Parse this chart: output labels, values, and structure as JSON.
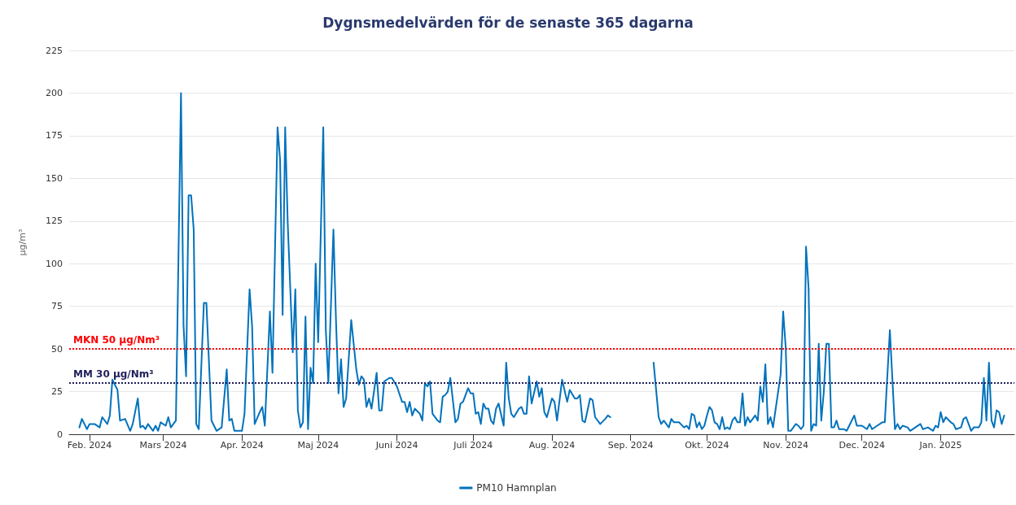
{
  "chart_data": {
    "type": "line",
    "title": "Dygnsmedelvärden för de senaste 365 dagarna",
    "ylabel": "µg/m³",
    "xlim": [
      "2024-01-24",
      "2025-01-30"
    ],
    "xticks": [
      {
        "value": "2024-02-01",
        "label": "Feb. 2024"
      },
      {
        "value": "2024-03-01",
        "label": "Mars 2024"
      },
      {
        "value": "2024-04-01",
        "label": "Apr. 2024"
      },
      {
        "value": "2024-05-01",
        "label": "Maj 2024"
      },
      {
        "value": "2024-06-01",
        "label": "Juni 2024"
      },
      {
        "value": "2024-07-01",
        "label": "Juli 2024"
      },
      {
        "value": "2024-08-01",
        "label": "Aug. 2024"
      },
      {
        "value": "2024-09-01",
        "label": "Sep. 2024"
      },
      {
        "value": "2024-10-01",
        "label": "Okt. 2024"
      },
      {
        "value": "2024-11-01",
        "label": "Nov. 2024"
      },
      {
        "value": "2024-12-01",
        "label": "Dec. 2024"
      },
      {
        "value": "2025-01-01",
        "label": "Jan. 2025"
      }
    ],
    "ylim": [
      0,
      225
    ],
    "yticks": [
      0,
      25,
      50,
      75,
      100,
      125,
      150,
      175,
      200,
      225
    ],
    "grid": "y",
    "legend": "bottom",
    "marker": "none",
    "line_style": "solid",
    "ref_lines": [
      {
        "axis": "y",
        "value": 50,
        "label": "MKN 50 µg/Nm³",
        "color": "#ff0000",
        "line_style": "dotted"
      },
      {
        "axis": "y",
        "value": 30,
        "label": "MM 30 µg/Nm³",
        "color": "#1f1f5c",
        "line_style": "dotted"
      }
    ],
    "series": [
      {
        "name": "PM10 Hamnplan",
        "color": "#0072bc",
        "x": [
          "2024-01-28",
          "2024-01-29",
          "2024-01-31",
          "2024-02-01",
          "2024-02-03",
          "2024-02-05",
          "2024-02-06",
          "2024-02-08",
          "2024-02-09",
          "2024-02-10",
          "2024-02-12",
          "2024-02-13",
          "2024-02-15",
          "2024-02-17",
          "2024-02-18",
          "2024-02-20",
          "2024-02-21",
          "2024-02-22",
          "2024-02-23",
          "2024-02-24",
          "2024-02-26",
          "2024-02-27",
          "2024-02-28",
          "2024-02-29",
          "2024-03-02",
          "2024-03-03",
          "2024-03-04",
          "2024-03-06",
          "2024-03-08",
          "2024-03-09",
          "2024-03-10",
          "2024-03-11",
          "2024-03-12",
          "2024-03-13",
          "2024-03-14",
          "2024-03-15",
          "2024-03-17",
          "2024-03-18",
          "2024-03-20",
          "2024-03-22",
          "2024-03-24",
          "2024-03-26",
          "2024-03-27",
          "2024-03-28",
          "2024-03-29",
          "2024-04-01",
          "2024-04-02",
          "2024-04-04",
          "2024-04-05",
          "2024-04-06",
          "2024-04-08",
          "2024-04-09",
          "2024-04-10",
          "2024-04-12",
          "2024-04-13",
          "2024-04-15",
          "2024-04-16",
          "2024-04-17",
          "2024-04-18",
          "2024-04-19",
          "2024-04-21",
          "2024-04-22",
          "2024-04-23",
          "2024-04-24",
          "2024-04-25",
          "2024-04-26",
          "2024-04-27",
          "2024-04-28",
          "2024-04-29",
          "2024-04-30",
          "2024-05-01",
          "2024-05-03",
          "2024-05-04",
          "2024-05-05",
          "2024-05-07",
          "2024-05-08",
          "2024-05-09",
          "2024-05-10",
          "2024-05-11",
          "2024-05-12",
          "2024-05-14",
          "2024-05-16",
          "2024-05-17",
          "2024-05-18",
          "2024-05-19",
          "2024-05-20",
          "2024-05-21",
          "2024-05-22",
          "2024-05-24",
          "2024-05-25",
          "2024-05-26",
          "2024-05-27",
          "2024-05-29",
          "2024-05-30",
          "2024-06-01",
          "2024-06-03",
          "2024-06-04",
          "2024-06-05",
          "2024-06-06",
          "2024-06-07",
          "2024-06-08",
          "2024-06-10",
          "2024-06-11",
          "2024-06-12",
          "2024-06-13",
          "2024-06-14",
          "2024-06-15",
          "2024-06-17",
          "2024-06-18",
          "2024-06-19",
          "2024-06-20",
          "2024-06-21",
          "2024-06-22",
          "2024-06-24",
          "2024-06-25",
          "2024-06-26",
          "2024-06-27",
          "2024-06-29",
          "2024-06-30",
          "2024-07-01",
          "2024-07-02",
          "2024-07-03",
          "2024-07-04",
          "2024-07-05",
          "2024-07-06",
          "2024-07-07",
          "2024-07-08",
          "2024-07-09",
          "2024-07-10",
          "2024-07-11",
          "2024-07-13",
          "2024-07-14",
          "2024-07-15",
          "2024-07-16",
          "2024-07-17",
          "2024-07-19",
          "2024-07-20",
          "2024-07-21",
          "2024-07-22",
          "2024-07-23",
          "2024-07-24",
          "2024-07-26",
          "2024-07-27",
          "2024-07-28",
          "2024-07-29",
          "2024-07-30",
          "2024-08-01",
          "2024-08-02",
          "2024-08-03",
          "2024-08-05",
          "2024-08-07",
          "2024-08-08",
          "2024-08-10",
          "2024-08-11",
          "2024-08-12",
          "2024-08-13",
          "2024-08-14",
          "2024-08-16",
          "2024-08-17",
          "2024-08-18",
          "2024-08-20",
          "2024-08-22",
          "2024-08-23",
          "2024-08-24",
          "2024-08-25",
          "2024-09-10",
          "2024-09-12",
          "2024-09-13",
          "2024-09-14",
          "2024-09-16",
          "2024-09-17",
          "2024-09-18",
          "2024-09-19",
          "2024-09-20",
          "2024-09-22",
          "2024-09-23",
          "2024-09-24",
          "2024-09-25",
          "2024-09-26",
          "2024-09-27",
          "2024-09-28",
          "2024-09-29",
          "2024-09-30",
          "2024-10-01",
          "2024-10-02",
          "2024-10-03",
          "2024-10-04",
          "2024-10-05",
          "2024-10-06",
          "2024-10-07",
          "2024-10-08",
          "2024-10-09",
          "2024-10-10",
          "2024-10-11",
          "2024-10-12",
          "2024-10-13",
          "2024-10-14",
          "2024-10-15",
          "2024-10-16",
          "2024-10-17",
          "2024-10-18",
          "2024-10-19",
          "2024-10-20",
          "2024-10-21",
          "2024-10-22",
          "2024-10-23",
          "2024-10-24",
          "2024-10-25",
          "2024-10-26",
          "2024-10-27",
          "2024-10-30",
          "2024-10-31",
          "2024-11-01",
          "2024-11-02",
          "2024-11-03",
          "2024-11-05",
          "2024-11-06",
          "2024-11-07",
          "2024-11-08",
          "2024-11-09",
          "2024-11-10",
          "2024-11-11",
          "2024-11-12",
          "2024-11-13",
          "2024-11-14",
          "2024-11-15",
          "2024-11-16",
          "2024-11-17",
          "2024-11-18",
          "2024-11-19",
          "2024-11-20",
          "2024-11-21",
          "2024-11-22",
          "2024-11-24",
          "2024-11-25",
          "2024-11-26",
          "2024-11-28",
          "2024-11-29",
          "2024-12-01",
          "2024-12-03",
          "2024-12-04",
          "2024-12-05",
          "2024-12-07",
          "2024-12-09",
          "2024-12-10",
          "2024-12-12",
          "2024-12-13",
          "2024-12-14",
          "2024-12-15",
          "2024-12-16",
          "2024-12-17",
          "2024-12-19",
          "2024-12-20",
          "2024-12-22",
          "2024-12-24",
          "2024-12-25",
          "2024-12-27",
          "2024-12-29",
          "2024-12-30",
          "2024-12-31",
          "2025-01-01",
          "2025-01-02",
          "2025-01-03",
          "2025-01-05",
          "2025-01-06",
          "2025-01-07",
          "2025-01-09",
          "2025-01-10",
          "2025-01-11",
          "2025-01-12",
          "2025-01-13",
          "2025-01-14",
          "2025-01-16",
          "2025-01-17",
          "2025-01-18",
          "2025-01-19",
          "2025-01-20",
          "2025-01-21",
          "2025-01-22",
          "2025-01-23",
          "2025-01-24",
          "2025-01-25",
          "2025-01-26"
        ],
        "values": [
          4,
          9,
          3,
          6,
          6,
          4,
          10,
          6,
          11,
          32,
          26,
          8,
          9,
          2,
          6,
          21,
          4,
          5,
          3,
          6,
          2,
          5,
          2,
          7,
          5,
          10,
          4,
          8,
          200,
          64,
          34,
          140,
          140,
          120,
          6,
          3,
          77,
          77,
          8,
          2,
          4,
          38,
          8,
          9,
          2,
          2,
          12,
          85,
          63,
          6,
          13,
          16,
          5,
          72,
          36,
          180,
          161,
          70,
          180,
          124,
          48,
          85,
          14,
          4,
          7,
          69,
          3,
          39,
          30,
          100,
          54,
          180,
          61,
          30,
          120,
          67,
          24,
          44,
          16,
          21,
          67,
          38,
          29,
          34,
          32,
          16,
          21,
          15,
          36,
          14,
          14,
          31,
          33,
          33,
          28,
          19,
          19,
          13,
          19,
          11,
          15,
          12,
          8,
          30,
          28,
          31,
          12,
          8,
          7,
          22,
          23,
          25,
          33,
          7,
          9,
          18,
          19,
          27,
          24,
          24,
          12,
          13,
          6,
          18,
          15,
          15,
          8,
          6,
          15,
          18,
          5,
          42,
          21,
          12,
          10,
          15,
          16,
          12,
          12,
          34,
          18,
          31,
          22,
          27,
          13,
          10,
          21,
          19,
          8,
          32,
          19,
          26,
          21,
          21,
          23,
          8,
          7,
          21,
          20,
          10,
          6,
          9,
          11,
          10,
          null,
          42,
          10,
          6,
          8,
          4,
          9,
          7,
          7,
          7,
          4,
          5,
          3,
          12,
          11,
          4,
          7,
          3,
          5,
          11,
          16,
          14,
          7,
          6,
          3,
          10,
          3,
          4,
          3,
          8,
          10,
          7,
          7,
          24,
          5,
          10,
          7,
          9,
          11,
          8,
          28,
          19,
          41,
          6,
          10,
          4,
          35,
          72,
          51,
          2,
          2,
          6,
          5,
          3,
          5,
          110,
          86,
          2,
          6,
          5,
          53,
          8,
          25,
          53,
          53,
          4,
          4,
          8,
          3,
          3,
          2,
          5,
          11,
          5,
          5,
          3,
          6,
          3,
          5,
          7,
          7,
          61,
          32,
          3,
          6,
          3,
          5,
          4,
          2,
          4,
          6,
          3,
          4,
          2,
          5,
          4,
          13,
          7,
          10,
          7,
          6,
          3,
          4,
          9,
          10,
          6,
          2,
          4,
          4,
          7,
          33,
          8,
          42,
          8,
          4,
          14,
          13,
          6,
          11
        ]
      }
    ]
  }
}
